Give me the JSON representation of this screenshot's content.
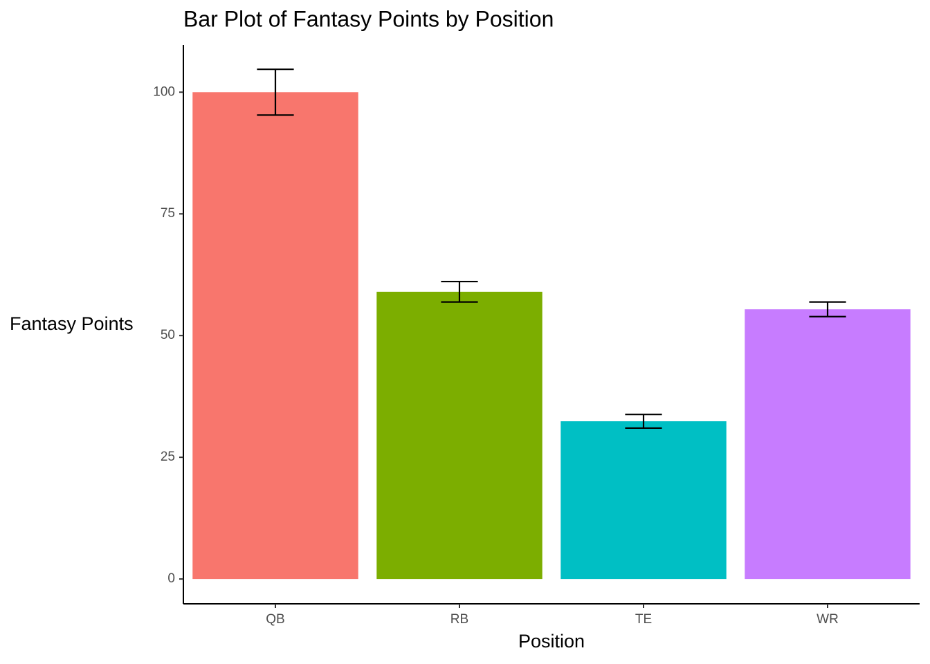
{
  "chart_data": {
    "type": "bar",
    "title": "Bar Plot of Fantasy Points by Position",
    "x_label": "Position",
    "y_label": "Fantasy Points",
    "categories": [
      "QB",
      "RB",
      "TE",
      "WR"
    ],
    "values": [
      100,
      59.0,
      32.4,
      55.4
    ],
    "errors": [
      4.7,
      2.1,
      1.4,
      1.5
    ],
    "colors": [
      "#f8766d",
      "#7cae00",
      "#00bfc4",
      "#c77cff"
    ],
    "ylim": [
      -5.1,
      109.7
    ],
    "yticks": [
      0,
      25,
      50,
      75,
      100
    ],
    "grid": false
  }
}
